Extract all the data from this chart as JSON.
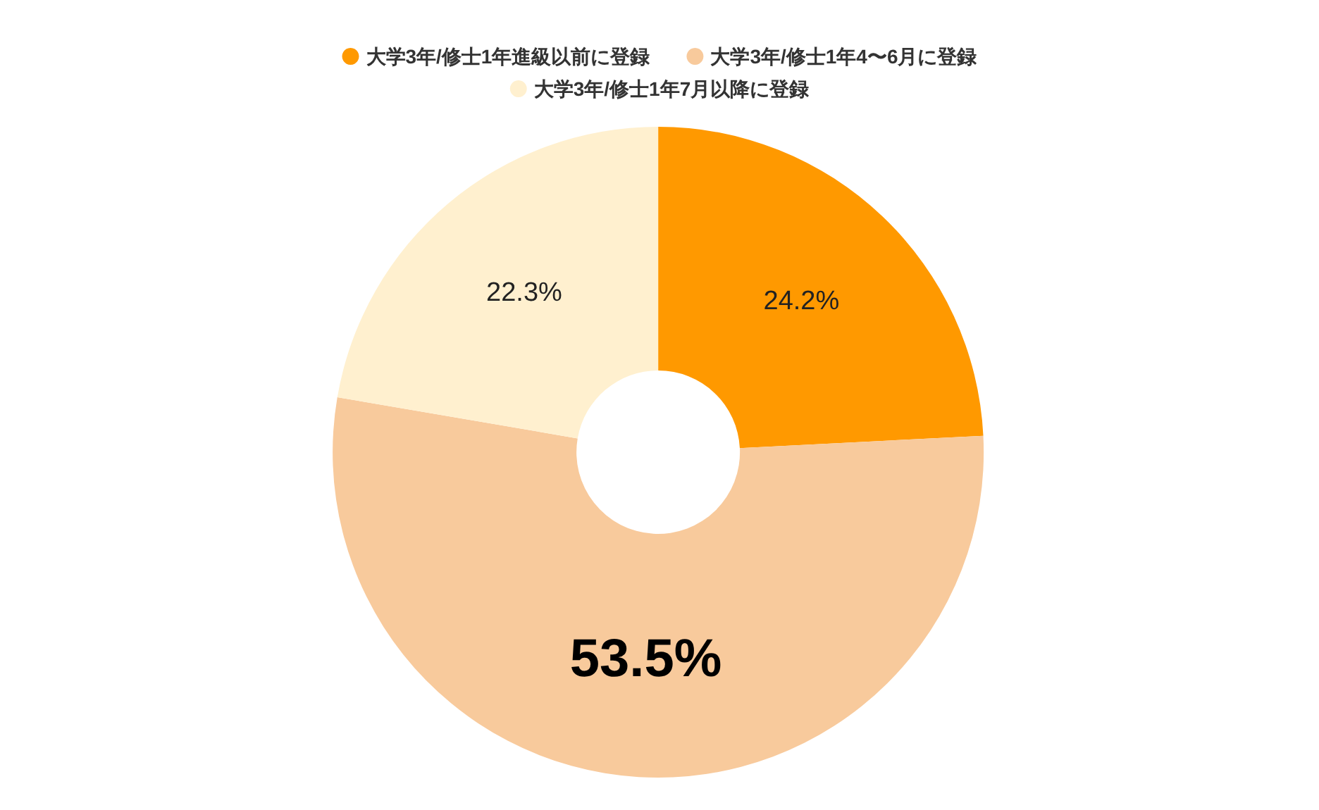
{
  "chart_data": {
    "type": "donut",
    "categories": [
      "大学3年/修士1年進級以前に登録",
      "大学3年/修士1年4〜6月に登録",
      "大学3年/修士1年7月以降に登録"
    ],
    "values": [
      24.2,
      53.5,
      22.3
    ],
    "colors": [
      "#ff9900",
      "#f8ca9c",
      "#fff0cf"
    ],
    "value_labels": [
      "24.2%",
      "53.5%",
      "22.3%"
    ],
    "legend": "top"
  }
}
